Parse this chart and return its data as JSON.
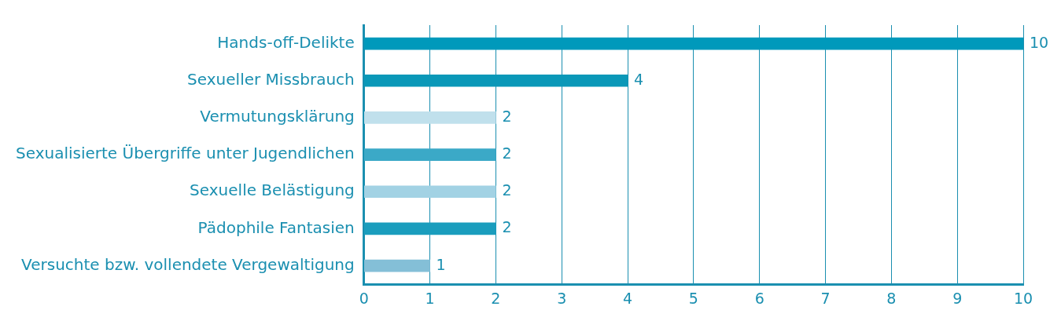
{
  "chart_data": {
    "type": "bar",
    "orientation": "horizontal",
    "categories": [
      "Hands-off-Delikte",
      "Sexueller Missbrauch",
      "Vermutungsklärung",
      "Sexualisierte Übergriffe unter Jugendlichen",
      "Sexuelle Belästigung",
      "Pädophile Fantasien",
      "Versuchte bzw. vollendete Vergewaltigung"
    ],
    "values": [
      10,
      4,
      2,
      2,
      2,
      2,
      1
    ],
    "colors": [
      "#0099bb",
      "#0a98b8",
      "#c0e0ec",
      "#3ba9c7",
      "#a2d2e4",
      "#1a9dbd",
      "#84bfd7"
    ],
    "xlim": [
      0,
      10
    ],
    "xticks": [
      0,
      1,
      2,
      3,
      4,
      5,
      6,
      7,
      8,
      9,
      10
    ],
    "grid": "x",
    "data_labels": true,
    "legend": false
  }
}
